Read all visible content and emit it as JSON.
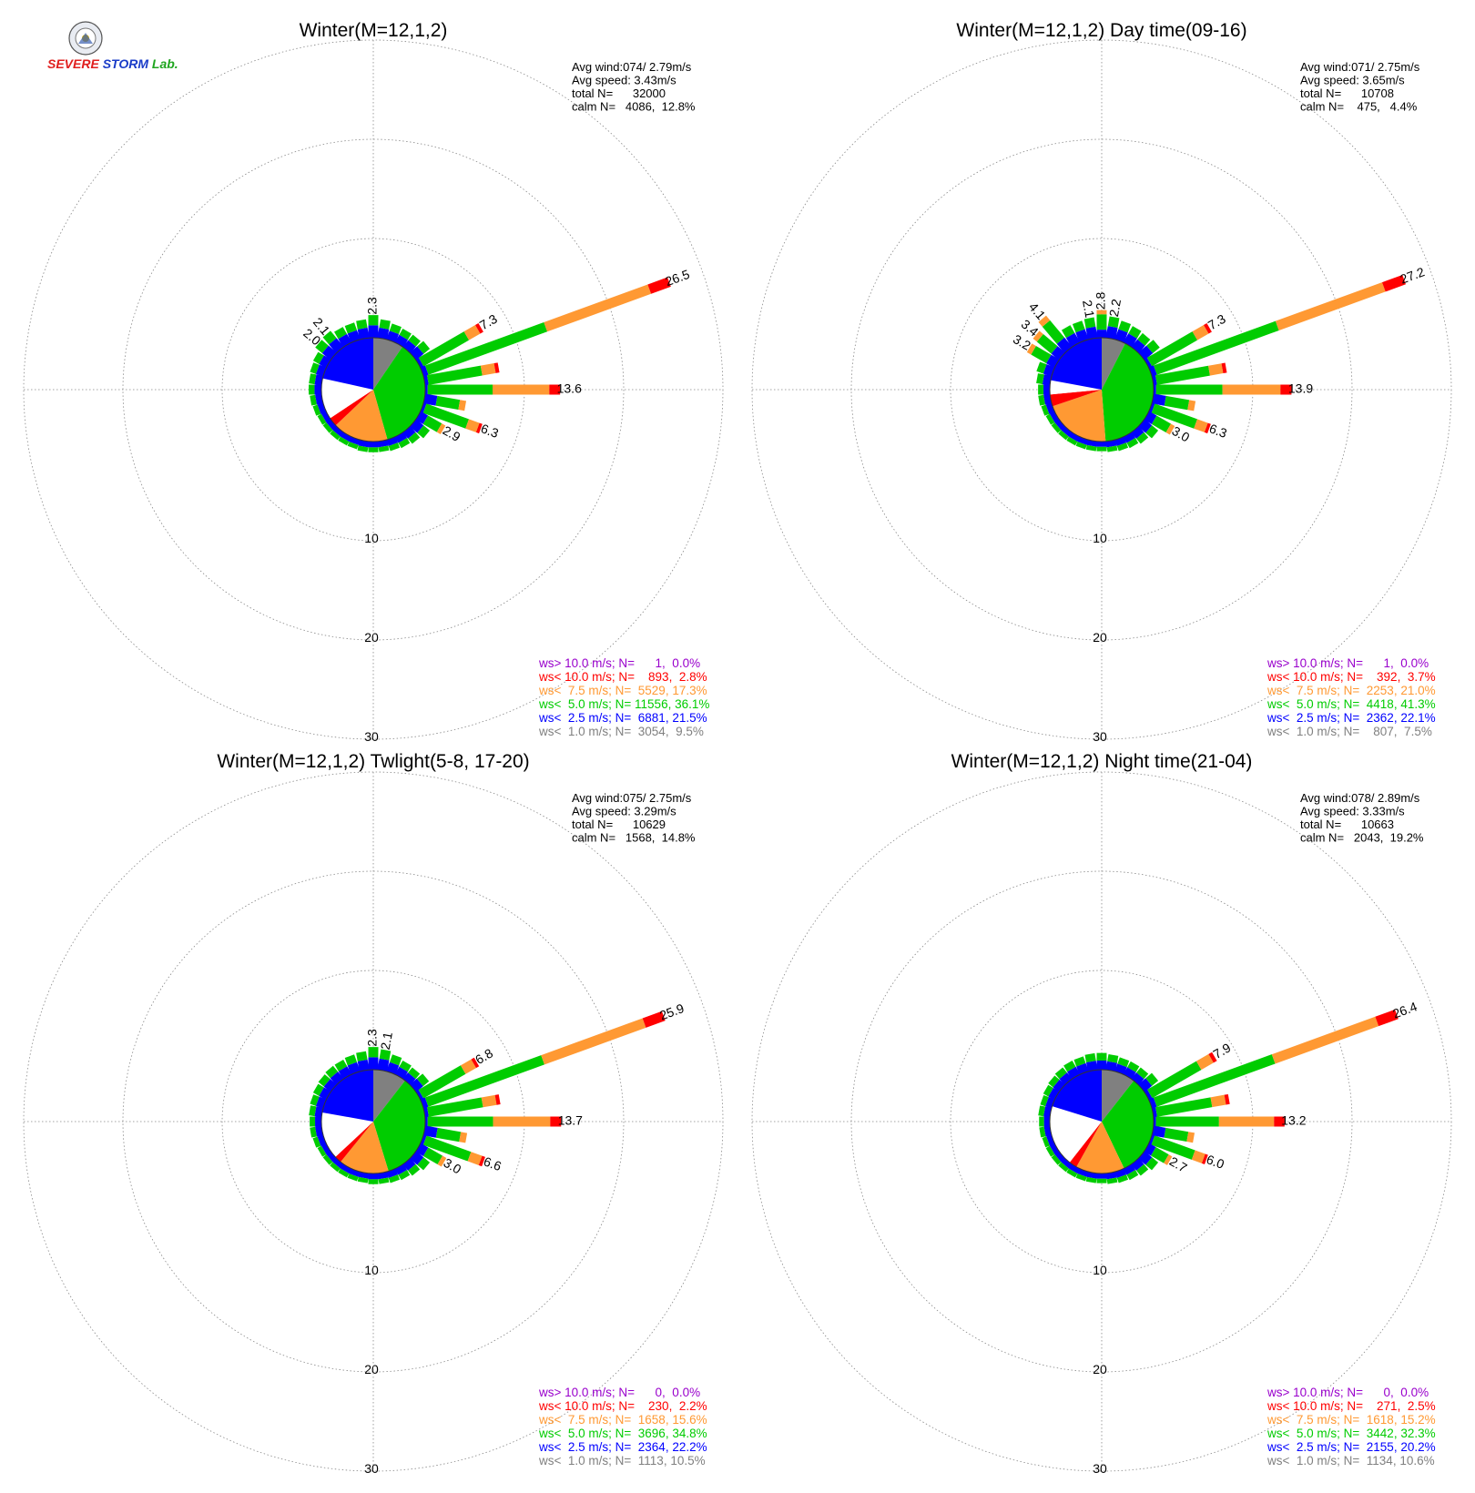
{
  "logo": {
    "text_a": "SEVERE",
    "text_b": "STORM",
    "text_c": "Lab."
  },
  "colors": {
    "gt10": "#9900cc",
    "lt10": "#ff0000",
    "lt75": "#ff9933",
    "lt5": "#00cc00",
    "lt25": "#0000ff",
    "lt1": "#808080",
    "calm": "#ffffff"
  },
  "chart_data": [
    {
      "type": "wind-rose",
      "title": "Winter(M=12,1,2)",
      "stats": [
        "Avg wind:074/ 2.79m/s",
        "Avg speed: 3.43m/s",
        "total N=      32000",
        "calm N=   4086,  12.8%"
      ],
      "rings": [
        10,
        20,
        30
      ],
      "pie_percent": {
        "lt1": 9.5,
        "lt25": 21.5,
        "lt5": 36.1,
        "lt75": 17.3,
        "lt10": 2.8,
        "gt10": 0.0,
        "calm": 12.8
      },
      "petals": [
        {
          "dir": 0,
          "value": 2.3,
          "label": "2.3"
        },
        {
          "dir": 10,
          "value": 1.9
        },
        {
          "dir": 20,
          "value": 1.7
        },
        {
          "dir": 30,
          "value": 1.6
        },
        {
          "dir": 40,
          "value": 1.6
        },
        {
          "dir": 50,
          "value": 1.8
        },
        {
          "dir": 60,
          "value": 7.3,
          "label": "7.3"
        },
        {
          "dir": 70,
          "value": 26.5,
          "label": "26.5"
        },
        {
          "dir": 80,
          "value": 7.6
        },
        {
          "dir": 90,
          "value": 13.6,
          "label": "13.6"
        },
        {
          "dir": 100,
          "value": 4.2
        },
        {
          "dir": 110,
          "value": 6.3,
          "label": "6.3"
        },
        {
          "dir": 120,
          "value": 2.9,
          "label": "2.9"
        },
        {
          "dir": 130,
          "value": 1.8
        },
        {
          "dir": 140,
          "value": 1.5
        },
        {
          "dir": 150,
          "value": 1.3
        },
        {
          "dir": 160,
          "value": 1.2
        },
        {
          "dir": 170,
          "value": 1.1
        },
        {
          "dir": 180,
          "value": 1.1
        },
        {
          "dir": 190,
          "value": 1.1
        },
        {
          "dir": 200,
          "value": 1.0
        },
        {
          "dir": 210,
          "value": 1.0
        },
        {
          "dir": 220,
          "value": 1.0
        },
        {
          "dir": 230,
          "value": 1.0
        },
        {
          "dir": 240,
          "value": 1.0
        },
        {
          "dir": 250,
          "value": 1.1
        },
        {
          "dir": 260,
          "value": 1.2
        },
        {
          "dir": 270,
          "value": 1.3
        },
        {
          "dir": 280,
          "value": 1.3
        },
        {
          "dir": 290,
          "value": 1.4
        },
        {
          "dir": 300,
          "value": 1.5
        },
        {
          "dir": 310,
          "value": 2.0,
          "label": "2.0"
        },
        {
          "dir": 320,
          "value": 2.1,
          "label": "2.1"
        },
        {
          "dir": 330,
          "value": 1.8
        },
        {
          "dir": 340,
          "value": 1.8
        },
        {
          "dir": 350,
          "value": 1.9
        }
      ],
      "legend": [
        {
          "key": "gt10",
          "text": "ws> 10.0 m/s; N=      1,  0.0%"
        },
        {
          "key": "lt10",
          "text": "ws< 10.0 m/s; N=    893,  2.8%"
        },
        {
          "key": "lt75",
          "text": "ws<  7.5 m/s; N=  5529, 17.3%"
        },
        {
          "key": "lt5",
          "text": "ws<  5.0 m/s; N= 11556, 36.1%"
        },
        {
          "key": "lt25",
          "text": "ws<  2.5 m/s; N=  6881, 21.5%"
        },
        {
          "key": "lt1",
          "text": "ws<  1.0 m/s; N=  3054,  9.5%"
        }
      ]
    },
    {
      "type": "wind-rose",
      "title": "Winter(M=12,1,2) Day time(09-16)",
      "stats": [
        "Avg wind:071/ 2.75m/s",
        "Avg speed: 3.65m/s",
        "total N=      10708",
        "calm N=    475,   4.4%"
      ],
      "rings": [
        10,
        20,
        30
      ],
      "pie_percent": {
        "lt1": 7.5,
        "lt25": 22.1,
        "lt5": 41.3,
        "lt75": 21.0,
        "lt10": 3.7,
        "gt10": 0.0,
        "calm": 4.4
      },
      "petals": [
        {
          "dir": 0,
          "value": 2.8,
          "label": "2.8"
        },
        {
          "dir": 10,
          "value": 2.2,
          "label": "2.2"
        },
        {
          "dir": 20,
          "value": 2.0
        },
        {
          "dir": 30,
          "value": 1.9
        },
        {
          "dir": 40,
          "value": 1.8
        },
        {
          "dir": 50,
          "value": 2.0
        },
        {
          "dir": 60,
          "value": 7.3,
          "label": "7.3"
        },
        {
          "dir": 70,
          "value": 27.2,
          "label": "27.2"
        },
        {
          "dir": 80,
          "value": 7.5
        },
        {
          "dir": 90,
          "value": 13.9,
          "label": "13.9"
        },
        {
          "dir": 100,
          "value": 4.3
        },
        {
          "dir": 110,
          "value": 6.3,
          "label": "6.3"
        },
        {
          "dir": 120,
          "value": 3.0,
          "label": "3.0"
        },
        {
          "dir": 130,
          "value": 1.8
        },
        {
          "dir": 140,
          "value": 1.5
        },
        {
          "dir": 150,
          "value": 1.3
        },
        {
          "dir": 160,
          "value": 1.2
        },
        {
          "dir": 170,
          "value": 1.1
        },
        {
          "dir": 180,
          "value": 1.0
        },
        {
          "dir": 190,
          "value": 1.0
        },
        {
          "dir": 200,
          "value": 1.0
        },
        {
          "dir": 210,
          "value": 1.0
        },
        {
          "dir": 220,
          "value": 1.0
        },
        {
          "dir": 230,
          "value": 1.0
        },
        {
          "dir": 240,
          "value": 1.0
        },
        {
          "dir": 250,
          "value": 1.1
        },
        {
          "dir": 260,
          "value": 1.2
        },
        {
          "dir": 270,
          "value": 1.2
        },
        {
          "dir": 280,
          "value": 1.4
        },
        {
          "dir": 290,
          "value": 1.6
        },
        {
          "dir": 300,
          "value": 3.2,
          "label": "3.2"
        },
        {
          "dir": 310,
          "value": 3.4,
          "label": "3.4"
        },
        {
          "dir": 320,
          "value": 4.1,
          "label": "4.1"
        },
        {
          "dir": 330,
          "value": 2.0
        },
        {
          "dir": 340,
          "value": 2.0
        },
        {
          "dir": 350,
          "value": 2.1,
          "label": "2.1"
        }
      ],
      "legend": [
        {
          "key": "gt10",
          "text": "ws> 10.0 m/s; N=      1,  0.0%"
        },
        {
          "key": "lt10",
          "text": "ws< 10.0 m/s; N=    392,  3.7%"
        },
        {
          "key": "lt75",
          "text": "ws<  7.5 m/s; N=  2253, 21.0%"
        },
        {
          "key": "lt5",
          "text": "ws<  5.0 m/s; N=  4418, 41.3%"
        },
        {
          "key": "lt25",
          "text": "ws<  2.5 m/s; N=  2362, 22.1%"
        },
        {
          "key": "lt1",
          "text": "ws<  1.0 m/s; N=    807,  7.5%"
        }
      ]
    },
    {
      "type": "wind-rose",
      "title": "Winter(M=12,1,2) Twlight(5-8, 17-20)",
      "stats": [
        "Avg wind:075/ 2.75m/s",
        "Avg speed: 3.29m/s",
        "total N=      10629",
        "calm N=   1568,  14.8%"
      ],
      "rings": [
        10,
        20,
        30
      ],
      "pie_percent": {
        "lt1": 10.5,
        "lt25": 22.2,
        "lt5": 34.8,
        "lt75": 15.6,
        "lt10": 2.2,
        "gt10": 0.0,
        "calm": 14.8
      },
      "petals": [
        {
          "dir": 0,
          "value": 2.3,
          "label": "2.3"
        },
        {
          "dir": 10,
          "value": 2.1,
          "label": "2.1"
        },
        {
          "dir": 20,
          "value": 1.8
        },
        {
          "dir": 30,
          "value": 1.6
        },
        {
          "dir": 40,
          "value": 1.5
        },
        {
          "dir": 50,
          "value": 1.7
        },
        {
          "dir": 60,
          "value": 6.8,
          "label": "6.8"
        },
        {
          "dir": 70,
          "value": 25.9,
          "label": "25.9"
        },
        {
          "dir": 80,
          "value": 7.7
        },
        {
          "dir": 90,
          "value": 13.7,
          "label": "13.7"
        },
        {
          "dir": 100,
          "value": 4.3
        },
        {
          "dir": 110,
          "value": 6.6,
          "label": "6.6"
        },
        {
          "dir": 120,
          "value": 3.0,
          "label": "3.0"
        },
        {
          "dir": 130,
          "value": 1.8
        },
        {
          "dir": 140,
          "value": 1.5
        },
        {
          "dir": 150,
          "value": 1.3
        },
        {
          "dir": 160,
          "value": 1.2
        },
        {
          "dir": 170,
          "value": 1.1
        },
        {
          "dir": 180,
          "value": 1.1
        },
        {
          "dir": 190,
          "value": 1.0
        },
        {
          "dir": 200,
          "value": 1.0
        },
        {
          "dir": 210,
          "value": 1.0
        },
        {
          "dir": 220,
          "value": 1.0
        },
        {
          "dir": 230,
          "value": 1.0
        },
        {
          "dir": 240,
          "value": 1.0
        },
        {
          "dir": 250,
          "value": 1.1
        },
        {
          "dir": 260,
          "value": 1.2
        },
        {
          "dir": 270,
          "value": 1.2
        },
        {
          "dir": 280,
          "value": 1.3
        },
        {
          "dir": 290,
          "value": 1.4
        },
        {
          "dir": 300,
          "value": 1.5
        },
        {
          "dir": 310,
          "value": 1.6
        },
        {
          "dir": 320,
          "value": 1.7
        },
        {
          "dir": 330,
          "value": 1.7
        },
        {
          "dir": 340,
          "value": 1.8
        },
        {
          "dir": 350,
          "value": 1.9
        }
      ],
      "legend": [
        {
          "key": "gt10",
          "text": "ws> 10.0 m/s; N=      0,  0.0%"
        },
        {
          "key": "lt10",
          "text": "ws< 10.0 m/s; N=    230,  2.2%"
        },
        {
          "key": "lt75",
          "text": "ws<  7.5 m/s; N=  1658, 15.6%"
        },
        {
          "key": "lt5",
          "text": "ws<  5.0 m/s; N=  3696, 34.8%"
        },
        {
          "key": "lt25",
          "text": "ws<  2.5 m/s; N=  2364, 22.2%"
        },
        {
          "key": "lt1",
          "text": "ws<  1.0 m/s; N=  1113, 10.5%"
        }
      ]
    },
    {
      "type": "wind-rose",
      "title": "Winter(M=12,1,2) Night time(21-04)",
      "stats": [
        "Avg wind:078/ 2.89m/s",
        "Avg speed: 3.33m/s",
        "total N=      10663",
        "calm N=   2043,  19.2%"
      ],
      "rings": [
        10,
        20,
        30
      ],
      "pie_percent": {
        "lt1": 10.6,
        "lt25": 20.2,
        "lt5": 32.3,
        "lt75": 15.2,
        "lt10": 2.5,
        "gt10": 0.0,
        "calm": 19.2
      },
      "petals": [
        {
          "dir": 0,
          "value": 1.7
        },
        {
          "dir": 10,
          "value": 1.6
        },
        {
          "dir": 20,
          "value": 1.5
        },
        {
          "dir": 30,
          "value": 1.5
        },
        {
          "dir": 40,
          "value": 1.5
        },
        {
          "dir": 50,
          "value": 1.8
        },
        {
          "dir": 60,
          "value": 7.9,
          "label": "7.9"
        },
        {
          "dir": 70,
          "value": 26.4,
          "label": "26.4"
        },
        {
          "dir": 80,
          "value": 7.8
        },
        {
          "dir": 90,
          "value": 13.2,
          "label": "13.2"
        },
        {
          "dir": 100,
          "value": 4.2
        },
        {
          "dir": 110,
          "value": 6.0,
          "label": "6.0"
        },
        {
          "dir": 120,
          "value": 2.7,
          "label": "2.7"
        },
        {
          "dir": 130,
          "value": 1.8
        },
        {
          "dir": 140,
          "value": 1.5
        },
        {
          "dir": 150,
          "value": 1.3
        },
        {
          "dir": 160,
          "value": 1.2
        },
        {
          "dir": 170,
          "value": 1.1
        },
        {
          "dir": 180,
          "value": 1.0
        },
        {
          "dir": 190,
          "value": 1.0
        },
        {
          "dir": 200,
          "value": 1.0
        },
        {
          "dir": 210,
          "value": 1.0
        },
        {
          "dir": 220,
          "value": 1.0
        },
        {
          "dir": 230,
          "value": 1.0
        },
        {
          "dir": 240,
          "value": 1.0
        },
        {
          "dir": 250,
          "value": 1.0
        },
        {
          "dir": 260,
          "value": 1.1
        },
        {
          "dir": 270,
          "value": 1.1
        },
        {
          "dir": 280,
          "value": 1.2
        },
        {
          "dir": 290,
          "value": 1.2
        },
        {
          "dir": 300,
          "value": 1.3
        },
        {
          "dir": 310,
          "value": 1.4
        },
        {
          "dir": 320,
          "value": 1.5
        },
        {
          "dir": 330,
          "value": 1.6
        },
        {
          "dir": 340,
          "value": 1.6
        },
        {
          "dir": 350,
          "value": 1.7
        }
      ],
      "legend": [
        {
          "key": "gt10",
          "text": "ws> 10.0 m/s; N=      0,  0.0%"
        },
        {
          "key": "lt10",
          "text": "ws< 10.0 m/s; N=    271,  2.5%"
        },
        {
          "key": "lt75",
          "text": "ws<  7.5 m/s; N=  1618, 15.2%"
        },
        {
          "key": "lt5",
          "text": "ws<  5.0 m/s; N=  3442, 32.3%"
        },
        {
          "key": "lt25",
          "text": "ws<  2.5 m/s; N=  2155, 20.2%"
        },
        {
          "key": "lt1",
          "text": "ws<  1.0 m/s; N=  1134, 10.6%"
        }
      ]
    }
  ]
}
